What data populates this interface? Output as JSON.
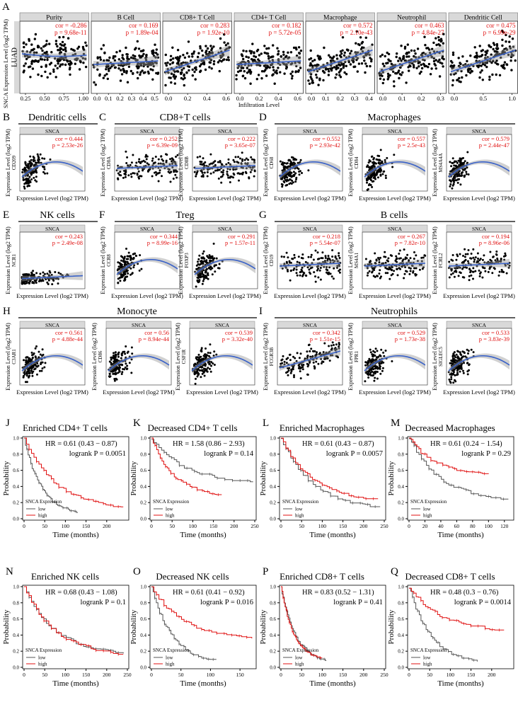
{
  "figure": {
    "panel_a": {
      "letter": "A",
      "row_label": "LUAD",
      "ylabel": "SNCA Expression Level (log2 TPM)",
      "xlabel": "Infiltration Level",
      "red": "#e01010",
      "fit_color": "#3a62c8"
    },
    "scatter_ylabel": "Expression Level (log2 TPM)",
    "scatter_xlabel": "Expression Level (log2 TPM)",
    "groups": [
      {
        "letter": "B",
        "title": "Dendritic cells"
      },
      {
        "letter": "C",
        "title": "CD8+T cells"
      },
      {
        "letter": "D",
        "title": "Macrophages"
      },
      {
        "letter": "E",
        "title": "NK cells"
      },
      {
        "letter": "F",
        "title": "Treg"
      },
      {
        "letter": "G",
        "title": "B cells"
      },
      {
        "letter": "H",
        "title": "Monocyte"
      },
      {
        "letter": "I",
        "title": "Neutrophils"
      }
    ],
    "km": {
      "ylabel": "Probability",
      "xlabel": "Time (months)",
      "legend_title": "SNCA Expression",
      "legend_low": "low",
      "legend_high": "high",
      "low_color": "#555555",
      "high_color": "#e01010"
    }
  },
  "chart_data": [
    {
      "type": "scatter",
      "panel": "A",
      "facet": "Purity",
      "cor": "cor = -0.286",
      "p": "p = 9.68e-11",
      "xlim": [
        0.1,
        1.0
      ],
      "xticks": [
        "0.25",
        "0.50",
        "0.75",
        "1.00"
      ],
      "ylim": [
        0,
        8
      ],
      "trend": "decreasing"
    },
    {
      "type": "scatter",
      "panel": "A",
      "facet": "B Cell",
      "cor": "cor = 0.169",
      "p": "p = 1.89e-04",
      "xlim": [
        0.0,
        0.55
      ],
      "xticks": [
        "0.0",
        "0.1",
        "0.2",
        "0.3",
        "0.4",
        "0.5"
      ],
      "ylim": [
        0,
        8
      ],
      "trend": "flat"
    },
    {
      "type": "scatter",
      "panel": "A",
      "facet": "CD8+ T Cell",
      "cor": "cor = 0.283",
      "p": "p = 1.92e-10",
      "xlim": [
        -0.05,
        0.7
      ],
      "xticks": [
        "0.0",
        "0.2",
        "0.4",
        "0.6"
      ],
      "ylim": [
        0,
        8
      ],
      "trend": "rising"
    },
    {
      "type": "scatter",
      "panel": "A",
      "facet": "CD4+ T Cell",
      "cor": "cor = 0.182",
      "p": "p = 5.72e-05",
      "xlim": [
        -0.05,
        0.7
      ],
      "xticks": [
        "0.0",
        "0.2",
        "0.4",
        "0.6"
      ],
      "ylim": [
        0,
        8
      ],
      "trend": "flat"
    },
    {
      "type": "scatter",
      "panel": "A",
      "facet": "Macrophage",
      "cor": "cor = 0.572",
      "p": "p = 2.10e-43",
      "xlim": [
        -0.02,
        0.42
      ],
      "xticks": [
        "0.0",
        "0.1",
        "0.2",
        "0.3",
        "0.4"
      ],
      "ylim": [
        0,
        8
      ],
      "trend": "rising"
    },
    {
      "type": "scatter",
      "panel": "A",
      "facet": "Neutrophil",
      "cor": "cor = 0.463",
      "p": "p = 4.84e-27",
      "xlim": [
        -0.02,
        0.4
      ],
      "xticks": [
        "0.0",
        "0.1",
        "0.2",
        "0.3"
      ],
      "ylim": [
        0,
        8
      ],
      "trend": "rising"
    },
    {
      "type": "scatter",
      "panel": "A",
      "facet": "Dendritic Cell",
      "cor": "cor = 0.475",
      "p": "p = 6.99e-29",
      "xlim": [
        -0.05,
        1.1
      ],
      "xticks": [
        "0.0",
        "0.5",
        "1.0"
      ],
      "ylim": [
        0,
        8
      ],
      "trend": "rising"
    },
    {
      "type": "scatter",
      "panel": "B",
      "header": "SNCA",
      "gene": "CD209",
      "cor": "cor = 0.444",
      "p": "p = 2.53e-26",
      "xlim": [
        0,
        4
      ],
      "ylim": [
        0,
        6
      ],
      "trend": "arch"
    },
    {
      "type": "scatter",
      "panel": "C",
      "header": "SNCA",
      "gene": "CD8A",
      "cor": "cor = 0.252",
      "p": "p = 6.39e-09",
      "xlim": [
        0,
        4
      ],
      "ylim": [
        0,
        6
      ],
      "trend": "flat"
    },
    {
      "type": "scatter",
      "panel": "C",
      "header": "SNCA",
      "gene": "CD8B",
      "cor": "cor = 0.222",
      "p": "p = 3.65e-07",
      "xlim": [
        0,
        4
      ],
      "ylim": [
        0,
        6
      ],
      "trend": "flat"
    },
    {
      "type": "scatter",
      "panel": "D",
      "header": "SNCA",
      "gene": "CD68",
      "cor": "cor = 0.552",
      "p": "p = 2.93e-42",
      "xlim": [
        0,
        4
      ],
      "ylim": [
        0,
        10
      ],
      "trend": "arch"
    },
    {
      "type": "scatter",
      "panel": "D",
      "header": "SNCA",
      "gene": "CD84",
      "cor": "cor = 0.557",
      "p": "p = 2.5e-43",
      "xlim": [
        0,
        4
      ],
      "ylim": [
        0,
        8
      ],
      "trend": "arch"
    },
    {
      "type": "scatter",
      "panel": "D",
      "header": "SNCA",
      "gene": "MS4A4A",
      "cor": "cor = 0.579",
      "p": "p = 2.44e-47",
      "xlim": [
        0,
        4
      ],
      "ylim": [
        0,
        8
      ],
      "trend": "arch"
    },
    {
      "type": "scatter",
      "panel": "E",
      "header": "SNCA",
      "gene": "NCR1",
      "cor": "cor = 0.243",
      "p": "p = 2.49e-08",
      "xlim": [
        0,
        4
      ],
      "ylim": [
        0,
        4
      ],
      "trend": "low"
    },
    {
      "type": "scatter",
      "panel": "F",
      "header": "SNCA",
      "gene": "CCR8",
      "cor": "cor = 0.344",
      "p": "p = 8.99e-16",
      "xlim": [
        0,
        4
      ],
      "ylim": [
        0,
        6
      ],
      "trend": "arch"
    },
    {
      "type": "scatter",
      "panel": "F",
      "header": "SNCA",
      "gene": "FOXP3",
      "cor": "cor = 0.291",
      "p": "p = 1.57e-11",
      "xlim": [
        0,
        4
      ],
      "ylim": [
        0,
        6
      ],
      "trend": "arch"
    },
    {
      "type": "scatter",
      "panel": "G",
      "header": "SNCA",
      "gene": "CD19",
      "cor": "cor = 0.218",
      "p": "p = 5.54e-07",
      "xlim": [
        0,
        4
      ],
      "ylim": [
        0,
        8
      ],
      "trend": "flat"
    },
    {
      "type": "scatter",
      "panel": "G",
      "header": "SNCA",
      "gene": "MS4A1",
      "cor": "cor = 0.267",
      "p": "p = 7.82e-10",
      "xlim": [
        0,
        4
      ],
      "ylim": [
        0,
        8
      ],
      "trend": "flat"
    },
    {
      "type": "scatter",
      "panel": "G",
      "header": "SNCA",
      "gene": "FCRL2",
      "cor": "cor = 0.194",
      "p": "p = 8.96e-06",
      "xlim": [
        0,
        4
      ],
      "ylim": [
        0,
        6
      ],
      "trend": "flat"
    },
    {
      "type": "scatter",
      "panel": "H",
      "header": "SNCA",
      "gene": "C3AR1",
      "cor": "cor = 0.561",
      "p": "p = 4.88e-44",
      "xlim": [
        0,
        4
      ],
      "ylim": [
        0,
        8
      ],
      "trend": "arch"
    },
    {
      "type": "scatter",
      "panel": "H",
      "header": "SNCA",
      "gene": "CD86",
      "cor": "cor = 0.56",
      "p": "p = 8.94e-44",
      "xlim": [
        0,
        4
      ],
      "ylim": [
        0,
        8
      ],
      "trend": "arch"
    },
    {
      "type": "scatter",
      "panel": "H",
      "header": "SNCA",
      "gene": "CSF1R",
      "cor": "cor = 0.539",
      "p": "p = 3.32e-40",
      "xlim": [
        0,
        4
      ],
      "ylim": [
        0,
        8
      ],
      "trend": "arch"
    },
    {
      "type": "scatter",
      "panel": "I",
      "header": "SNCA",
      "gene": "FCGR3B",
      "cor": "cor = 0.342",
      "p": "p = 1.51e-15",
      "xlim": [
        0,
        4
      ],
      "ylim": [
        0,
        6
      ],
      "trend": "rising"
    },
    {
      "type": "scatter",
      "panel": "I",
      "header": "SNCA",
      "gene": "FPR1",
      "cor": "cor = 0.529",
      "p": "p = 1.73e-38",
      "xlim": [
        0,
        4
      ],
      "ylim": [
        0,
        8
      ],
      "trend": "arch"
    },
    {
      "type": "scatter",
      "panel": "I",
      "header": "SNCA",
      "gene": "SIGLEC5",
      "cor": "cor = 0.533",
      "p": "p = 3.83e-39",
      "xlim": [
        0,
        4
      ],
      "ylim": [
        0,
        8
      ],
      "trend": "arch"
    },
    {
      "type": "line",
      "panel": "J",
      "title": "Enriched CD4+ T cells",
      "hr": "HR = 0.61 (0.43 − 0.87)",
      "logrank": "logrank P = 0.0051",
      "xlim": [
        0,
        250
      ],
      "xticks": [
        0,
        50,
        100,
        150,
        200
      ],
      "yticks": [
        "0.0",
        "0.2",
        "0.4",
        "0.6",
        "0.8",
        "1.0"
      ],
      "high_end_time": 240,
      "high_end_prob": 0.12,
      "low_end_time": 130,
      "low_end_prob": 0.05
    },
    {
      "type": "line",
      "panel": "K",
      "title": "Decreased CD4+ T cells",
      "hr": "HR = 1.58 (0.86 − 2.93)",
      "logrank": "logrank P = 0.14",
      "xlim": [
        0,
        250
      ],
      "xticks": [
        0,
        50,
        100,
        150,
        200,
        250
      ],
      "yticks": [
        "0.0",
        "0.2",
        "0.4",
        "0.6",
        "0.8",
        "1.0"
      ],
      "high_end_time": 170,
      "high_end_prob": 0.28,
      "low_end_time": 245,
      "low_end_prob": 0.45
    },
    {
      "type": "line",
      "panel": "L",
      "title": "Enriched Macrophages",
      "hr": "HR = 0.61 (0.43 − 0.87)",
      "logrank": "logrank P = 0.0057",
      "xlim": [
        0,
        250
      ],
      "xticks": [
        0,
        50,
        100,
        150,
        200,
        250
      ],
      "yticks": [
        "0.0",
        "0.2",
        "0.4",
        "0.6",
        "0.8",
        "1.0"
      ],
      "high_end_time": 235,
      "high_end_prob": 0.22,
      "low_end_time": 240,
      "low_end_prob": 0.12
    },
    {
      "type": "line",
      "panel": "M",
      "title": "Decreased Macrophages",
      "hr": "HR = 0.61 (0.24 − 1.54)",
      "logrank": "logrank P = 0.29",
      "xlim": [
        0,
        130
      ],
      "xticks": [
        0,
        20,
        40,
        60,
        80,
        100,
        120
      ],
      "yticks": [
        "0.0",
        "0.2",
        "0.4",
        "0.6",
        "0.8",
        "1.0"
      ],
      "high_end_time": 100,
      "high_end_prob": 0.55,
      "low_end_time": 125,
      "low_end_prob": 0.22
    },
    {
      "type": "line",
      "panel": "N",
      "title": "Enriched NK cells",
      "hr": "HR = 0.68 (0.43 − 1.08)",
      "logrank": "logrank P = 0.1",
      "xlim": [
        0,
        250
      ],
      "xticks": [
        0,
        50,
        100,
        150,
        200,
        250
      ],
      "yticks": [
        "0.0",
        "0.2",
        "0.4",
        "0.6",
        "0.8",
        "1.0"
      ],
      "high_end_time": 240,
      "high_end_prob": 0.14,
      "low_end_time": 240,
      "low_end_prob": 0.15
    },
    {
      "type": "line",
      "panel": "O",
      "title": "Decreased NK cells",
      "hr": "HR = 0.61 (0.41 − 0.92)",
      "logrank": "logrank P = 0.016",
      "xlim": [
        0,
        175
      ],
      "xticks": [
        0,
        50,
        100,
        150
      ],
      "yticks": [
        "0.0",
        "0.2",
        "0.4",
        "0.6",
        "0.8",
        "1.0"
      ],
      "high_end_time": 170,
      "high_end_prob": 0.35,
      "low_end_time": 110,
      "low_end_prob": 0.05
    },
    {
      "type": "line",
      "panel": "P",
      "title": "Enriched CD8+ T cells",
      "hr": "HR = 0.83 (0.52 − 1.31)",
      "logrank": "logrank P = 0.41",
      "xlim": [
        0,
        250
      ],
      "xticks": [
        0,
        50,
        100,
        150,
        200,
        250
      ],
      "yticks": [
        "0.0",
        "0.2",
        "0.4",
        "0.6",
        "0.8",
        "1.0"
      ],
      "high_end_time": 100,
      "high_end_prob": 0.08,
      "low_end_time": 110,
      "low_end_prob": 0.06
    },
    {
      "type": "line",
      "panel": "Q",
      "title": "Decreased CD8+ T cells",
      "hr": "HR = 0.48 (0.3 − 0.76)",
      "logrank": "logrank P = 0.0014",
      "xlim": [
        0,
        250
      ],
      "xticks": [
        0,
        50,
        100,
        150,
        200
      ],
      "yticks": [
        "0.0",
        "0.2",
        "0.4",
        "0.6",
        "0.8",
        "1.0"
      ],
      "high_end_time": 230,
      "high_end_prob": 0.45,
      "low_end_time": 165,
      "low_end_prob": 0.05
    }
  ]
}
